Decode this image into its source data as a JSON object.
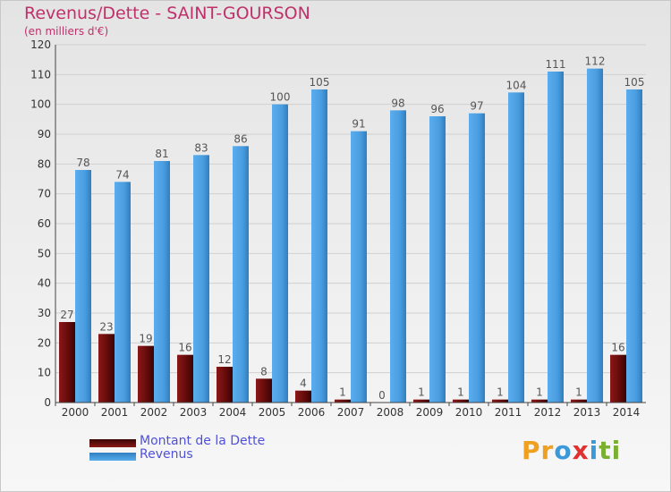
{
  "header": {
    "title": "Revenus/Dette - SAINT-GOURSON",
    "subtitle": "(en milliers d'€)"
  },
  "legend": {
    "items": [
      {
        "label": "Montant de la Dette",
        "color": "#7a1010"
      },
      {
        "label": "Revenus",
        "color": "#4a9ee0"
      }
    ]
  },
  "logo": {
    "letters": [
      "P",
      "r",
      "o",
      "x",
      "i",
      "t",
      "i"
    ],
    "colors": [
      "#f0a020",
      "#f0a020",
      "#3a9ad9",
      "#e03030",
      "#3a9ad9",
      "#7ab030",
      "#7ab030"
    ]
  },
  "chart_data": {
    "type": "bar",
    "title": "Revenus/Dette - SAINT-GOURSON",
    "subtitle": "(en milliers d'€)",
    "categories": [
      "2000",
      "2001",
      "2002",
      "2003",
      "2004",
      "2005",
      "2006",
      "2007",
      "2008",
      "2009",
      "2010",
      "2011",
      "2012",
      "2013",
      "2014"
    ],
    "series": [
      {
        "name": "Montant de la Dette",
        "color": "#7a1010",
        "values": [
          27,
          23,
          19,
          16,
          12,
          8,
          4,
          1,
          0,
          1,
          1,
          1,
          1,
          1,
          16
        ]
      },
      {
        "name": "Revenus",
        "color": "#4a9ee0",
        "values": [
          78,
          74,
          81,
          83,
          86,
          100,
          105,
          91,
          98,
          96,
          97,
          104,
          111,
          112,
          105
        ]
      }
    ],
    "ylim": [
      0,
      120
    ],
    "yticks": [
      0,
      10,
      20,
      30,
      40,
      50,
      60,
      70,
      80,
      90,
      100,
      110,
      120
    ],
    "grid": true,
    "legend_position": "bottom-left"
  }
}
